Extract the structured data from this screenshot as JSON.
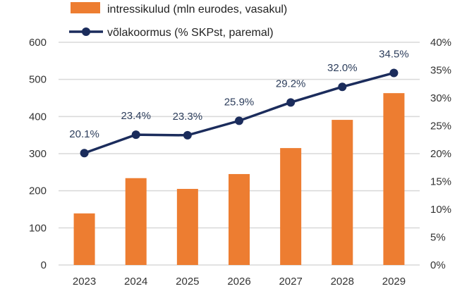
{
  "chart_data": {
    "type": "bar+line",
    "categories": [
      "2023",
      "2024",
      "2025",
      "2026",
      "2027",
      "2028",
      "2029"
    ],
    "series": [
      {
        "name": "intressikulud (mln eurodes, vasakul)",
        "type": "bar",
        "axis": "left",
        "color": "#ed7d31",
        "values": [
          139,
          234,
          205,
          245,
          315,
          391,
          463
        ]
      },
      {
        "name": "võlakoormus (% SKPst, paremal)",
        "type": "line",
        "axis": "right",
        "color": "#1b2c5c",
        "values": [
          20.1,
          23.4,
          23.3,
          25.9,
          29.2,
          32.0,
          34.5
        ],
        "labels": [
          "20.1%",
          "23.4%",
          "23.3%",
          "25.9%",
          "29.2%",
          "32.0%",
          "34.5%"
        ]
      }
    ],
    "ylim_left": [
      0,
      600
    ],
    "yticks_left": [
      "0",
      "100",
      "200",
      "300",
      "400",
      "500",
      "600"
    ],
    "ylim_right": [
      0,
      40
    ],
    "yticks_right": [
      "0%",
      "5%",
      "10%",
      "15%",
      "20%",
      "25%",
      "30%",
      "35%",
      "40%"
    ],
    "grid": true,
    "legend": "top"
  }
}
